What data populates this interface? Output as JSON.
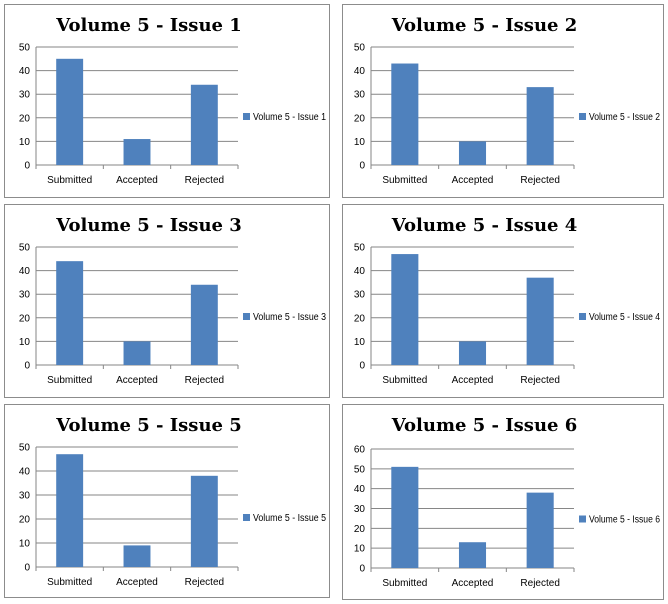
{
  "chart_data": [
    {
      "type": "bar",
      "title": "Volume 5 - Issue 1",
      "categories": [
        "Submitted",
        "Accepted",
        "Rejected"
      ],
      "series": [
        {
          "name": "Volume 5 - Issue 1",
          "values": [
            45,
            11,
            34
          ],
          "color": "#4f81bd"
        }
      ],
      "ylim": [
        0,
        50
      ],
      "yticks": [
        0,
        10,
        20,
        30,
        40,
        50
      ],
      "grid": true,
      "legend": "right"
    },
    {
      "type": "bar",
      "title": "Volume 5 - Issue 2",
      "categories": [
        "Submitted",
        "Accepted",
        "Rejected"
      ],
      "series": [
        {
          "name": "Volume 5 - Issue 2",
          "values": [
            43,
            10,
            33
          ],
          "color": "#4f81bd"
        }
      ],
      "ylim": [
        0,
        50
      ],
      "yticks": [
        0,
        10,
        20,
        30,
        40,
        50
      ],
      "grid": true,
      "legend": "right"
    },
    {
      "type": "bar",
      "title": "Volume 5 - Issue 3",
      "categories": [
        "Submitted",
        "Accepted",
        "Rejected"
      ],
      "series": [
        {
          "name": "Volume 5 - Issue 3",
          "values": [
            44,
            10,
            34
          ],
          "color": "#4f81bd"
        }
      ],
      "ylim": [
        0,
        50
      ],
      "yticks": [
        0,
        10,
        20,
        30,
        40,
        50
      ],
      "grid": true,
      "legend": "right"
    },
    {
      "type": "bar",
      "title": "Volume 5 - Issue 4",
      "categories": [
        "Submitted",
        "Accepted",
        "Rejected"
      ],
      "series": [
        {
          "name": "Volume 5 - Issue 4",
          "values": [
            47,
            10,
            37
          ],
          "color": "#4f81bd"
        }
      ],
      "ylim": [
        0,
        50
      ],
      "yticks": [
        0,
        10,
        20,
        30,
        40,
        50
      ],
      "grid": true,
      "legend": "right"
    },
    {
      "type": "bar",
      "title": "Volume 5 - Issue 5",
      "categories": [
        "Submitted",
        "Accepted",
        "Rejected"
      ],
      "series": [
        {
          "name": "Volume 5 - Issue 5",
          "values": [
            47,
            9,
            38
          ],
          "color": "#4f81bd"
        }
      ],
      "ylim": [
        0,
        50
      ],
      "yticks": [
        0,
        10,
        20,
        30,
        40,
        50
      ],
      "grid": true,
      "legend": "right"
    },
    {
      "type": "bar",
      "title": "Volume 5 - Issue 6",
      "categories": [
        "Submitted",
        "Accepted",
        "Rejected"
      ],
      "series": [
        {
          "name": "Volume 5 - Issue 6",
          "values": [
            51,
            13,
            38
          ],
          "color": "#4f81bd"
        }
      ],
      "ylim": [
        0,
        60
      ],
      "yticks": [
        0,
        10,
        20,
        30,
        40,
        50,
        60
      ],
      "grid": true,
      "legend": "right"
    }
  ]
}
